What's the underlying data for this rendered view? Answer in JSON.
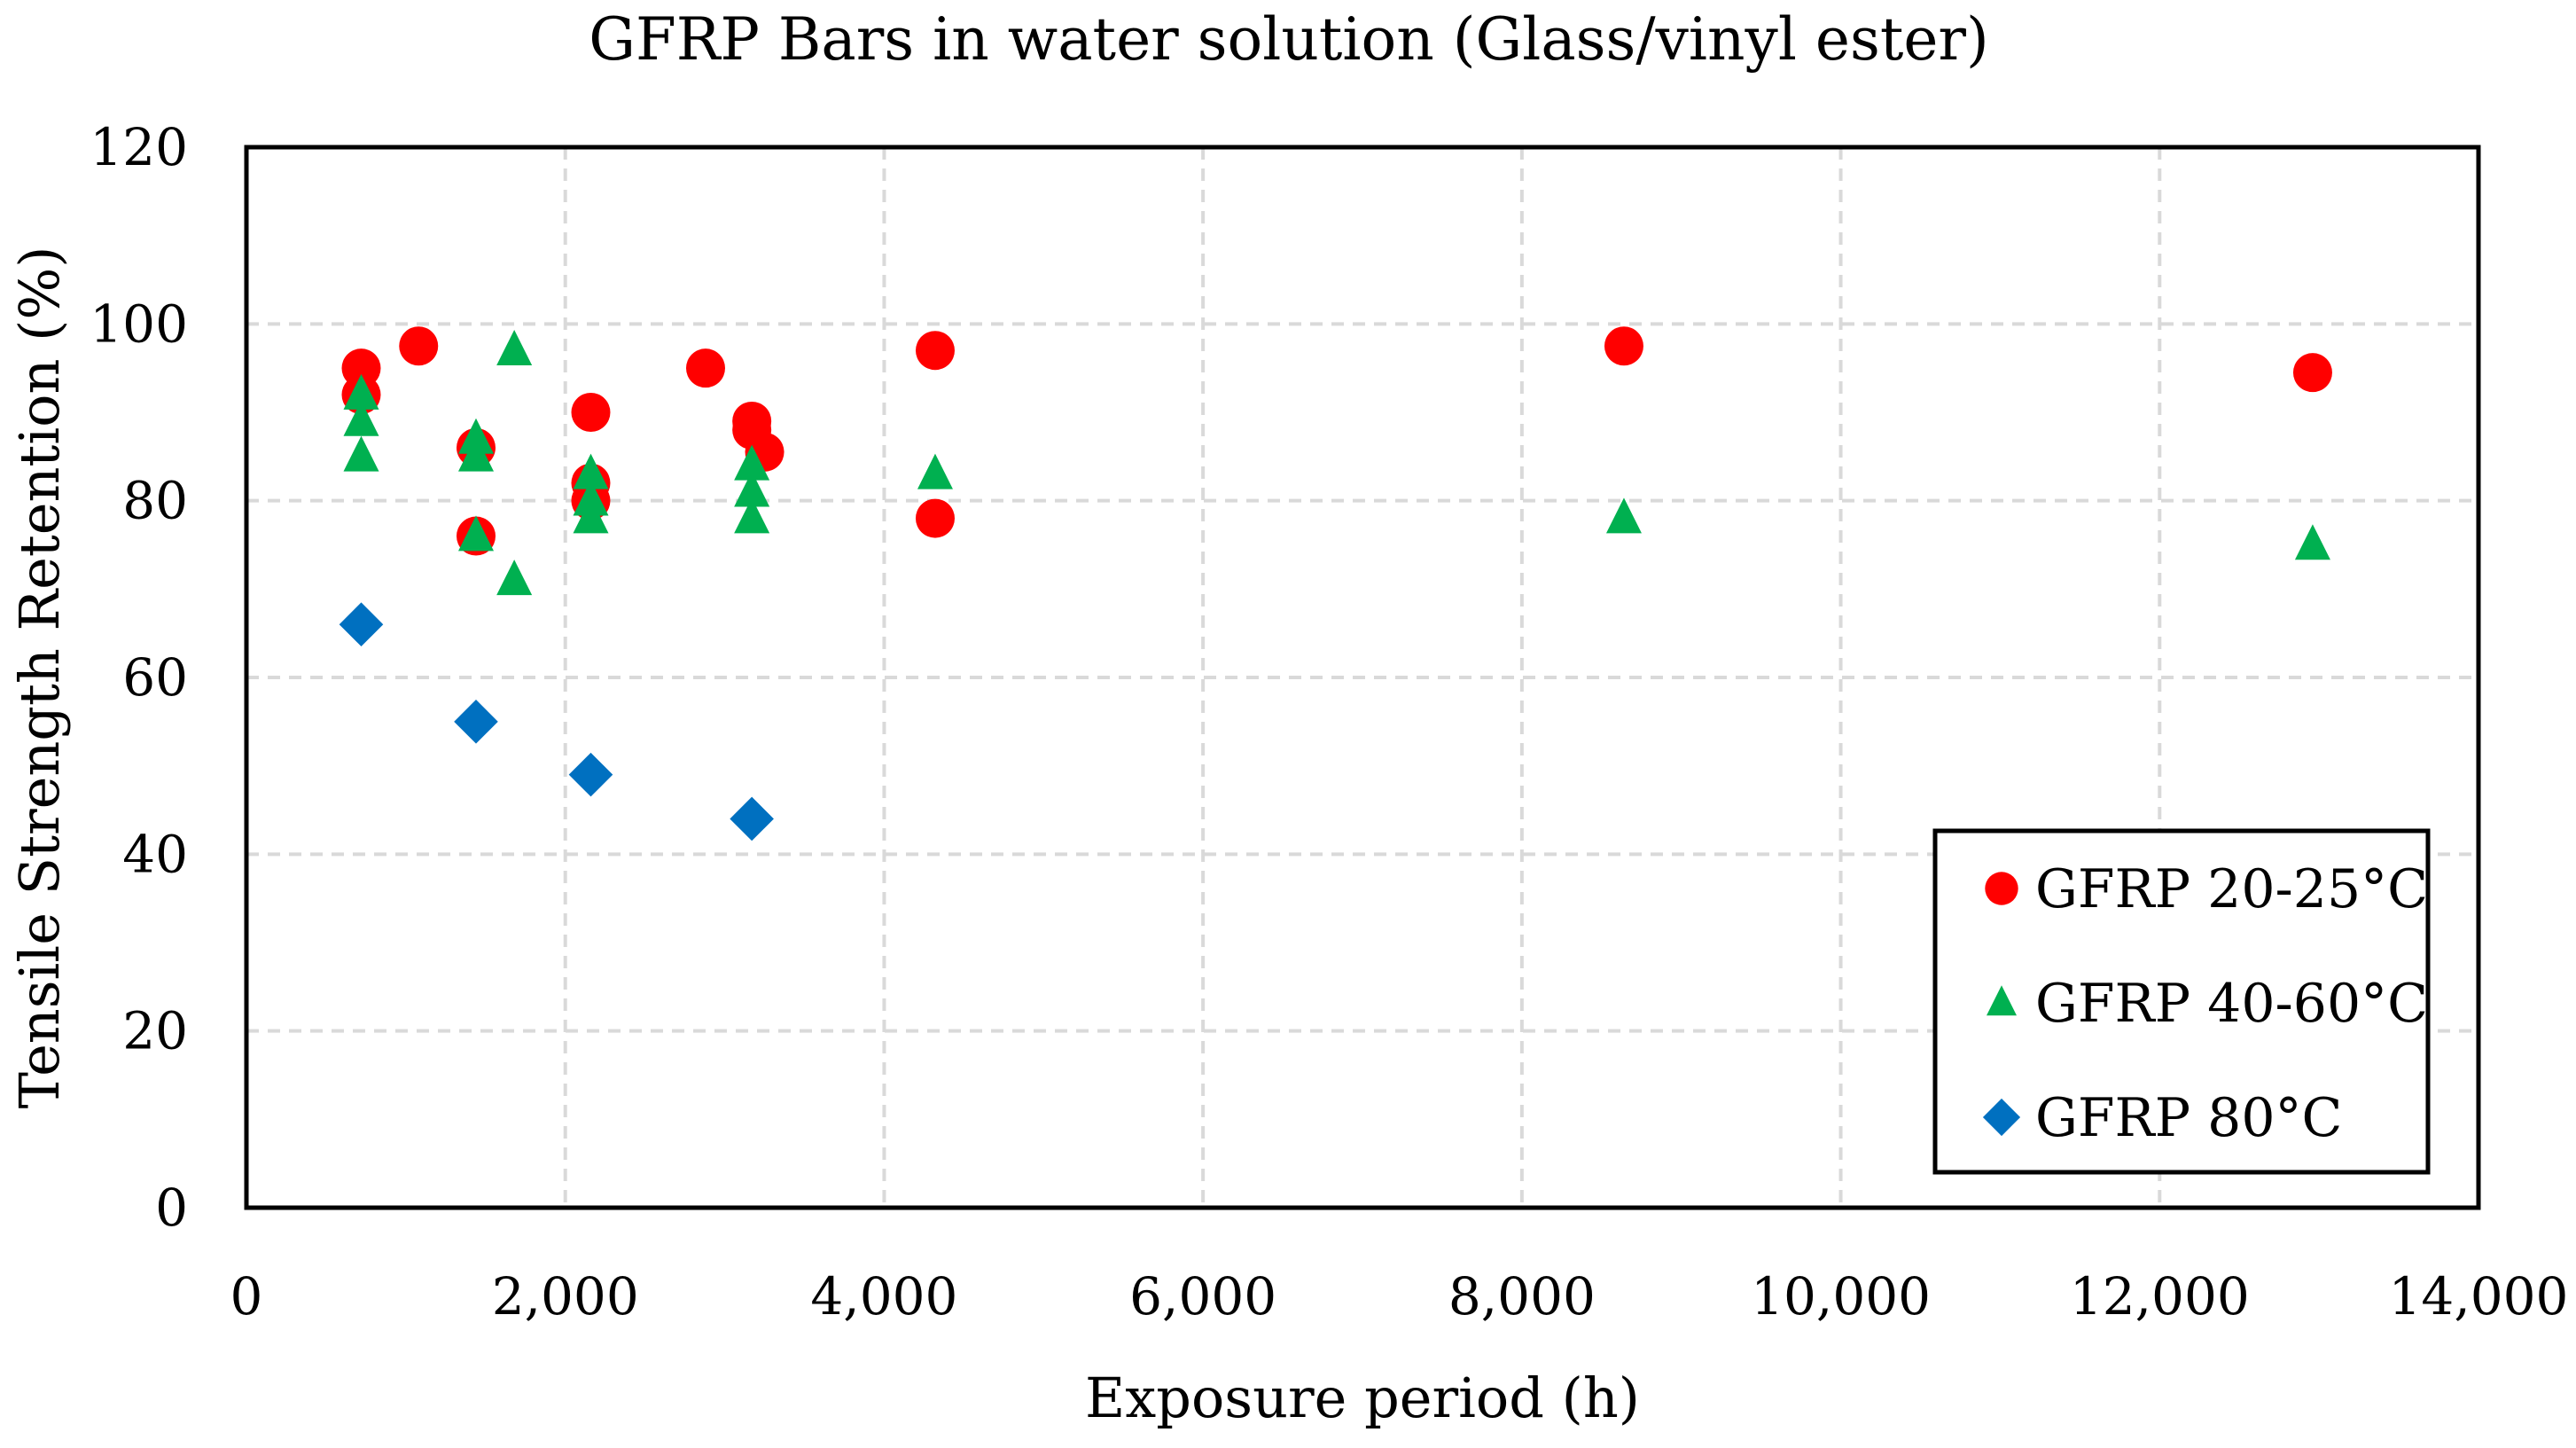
{
  "chart_data": {
    "type": "scatter",
    "title": "GFRP Bars in water solution (Glass/vinyl ester)",
    "xlabel": "Exposure period (h)",
    "ylabel": "Tensile Strength Retention (%)",
    "xlim": [
      0,
      14000
    ],
    "ylim": [
      0,
      120
    ],
    "x_ticks": [
      0,
      2000,
      4000,
      6000,
      8000,
      10000,
      12000,
      14000
    ],
    "x_tick_labels": [
      "0",
      "2,000",
      "4,000",
      "6,000",
      "8,000",
      "10,000",
      "12,000",
      "14,000"
    ],
    "y_ticks": [
      0,
      20,
      40,
      60,
      80,
      100,
      120
    ],
    "y_tick_labels": [
      "0",
      "20",
      "40",
      "60",
      "80",
      "100",
      "120"
    ],
    "grid": true,
    "legend_position": "bottom-right",
    "series": [
      {
        "name": "GFRP 20-25°C",
        "marker": "circle",
        "color": "#ff0000",
        "points": [
          [
            720,
            95
          ],
          [
            720,
            92
          ],
          [
            1080,
            97.5
          ],
          [
            1440,
            86
          ],
          [
            1440,
            76
          ],
          [
            2160,
            90
          ],
          [
            2160,
            82
          ],
          [
            2160,
            80
          ],
          [
            2880,
            95
          ],
          [
            3170,
            89
          ],
          [
            3170,
            88
          ],
          [
            3250,
            85.5
          ],
          [
            4320,
            97
          ],
          [
            4320,
            78
          ],
          [
            8640,
            97.5
          ],
          [
            12960,
            94.5
          ]
        ]
      },
      {
        "name": "GFRP 40-60°C",
        "marker": "triangle",
        "color": "#00b050",
        "points": [
          [
            720,
            92
          ],
          [
            720,
            89
          ],
          [
            720,
            85
          ],
          [
            1440,
            87
          ],
          [
            1440,
            85
          ],
          [
            1440,
            76
          ],
          [
            1680,
            97
          ],
          [
            1680,
            71
          ],
          [
            2160,
            83
          ],
          [
            2160,
            80
          ],
          [
            2160,
            78
          ],
          [
            3170,
            84
          ],
          [
            3170,
            81
          ],
          [
            3170,
            78
          ],
          [
            4320,
            83
          ],
          [
            8640,
            78
          ],
          [
            12960,
            75
          ]
        ]
      },
      {
        "name": "GFRP 80°C",
        "marker": "diamond",
        "color": "#0070c0",
        "points": [
          [
            720,
            66
          ],
          [
            1440,
            55
          ],
          [
            2160,
            49
          ],
          [
            3170,
            44
          ]
        ]
      }
    ]
  }
}
